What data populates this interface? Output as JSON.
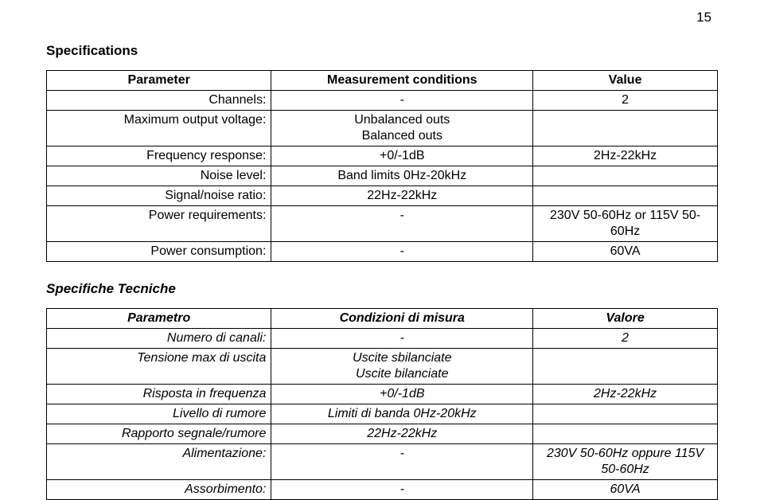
{
  "page_number": "15",
  "section1": {
    "title": "Specifications",
    "headers": [
      "Parameter",
      "Measurement conditions",
      "Value"
    ],
    "rows": [
      {
        "p": "Channels:",
        "c": "-",
        "v": "2"
      },
      {
        "p": "Maximum output voltage:",
        "c": "Unbalanced outs\nBalanced outs",
        "v": ""
      },
      {
        "p": "Frequency response:",
        "c": "+0/-1dB",
        "v": "2Hz-22kHz"
      },
      {
        "p": "Noise level:",
        "c": "Band limits 0Hz-20kHz",
        "v": ""
      },
      {
        "p": "Signal/noise ratio:",
        "c": "22Hz-22kHz",
        "v": ""
      },
      {
        "p": "Power requirements:",
        "c": "-",
        "v": "230V 50-60Hz or 115V 50-60Hz"
      },
      {
        "p": "Power consumption:",
        "c": "-",
        "v": "60VA"
      }
    ]
  },
  "section2": {
    "title": "Specifiche Tecniche",
    "headers": [
      "Parametro",
      "Condizioni di misura",
      "Valore"
    ],
    "rows": [
      {
        "p": "Numero di canali:",
        "c": "-",
        "v": "2"
      },
      {
        "p": "Tensione max di uscita",
        "c": "Uscite sbilanciate\nUscite bilanciate",
        "v": ""
      },
      {
        "p": "Risposta in frequenza",
        "c": "+0/-1dB",
        "v": "2Hz-22kHz"
      },
      {
        "p": "Livello di rumore",
        "c": "Limiti di banda 0Hz-20kHz",
        "v": ""
      },
      {
        "p": "Rapporto segnale/rumore",
        "c": "22Hz-22kHz",
        "v": ""
      },
      {
        "p": "Alimentazione:",
        "c": "-",
        "v": "230V 50-60Hz oppure 115V 50-60Hz"
      },
      {
        "p": "Assorbimento:",
        "c": "-",
        "v": "60VA"
      }
    ]
  }
}
